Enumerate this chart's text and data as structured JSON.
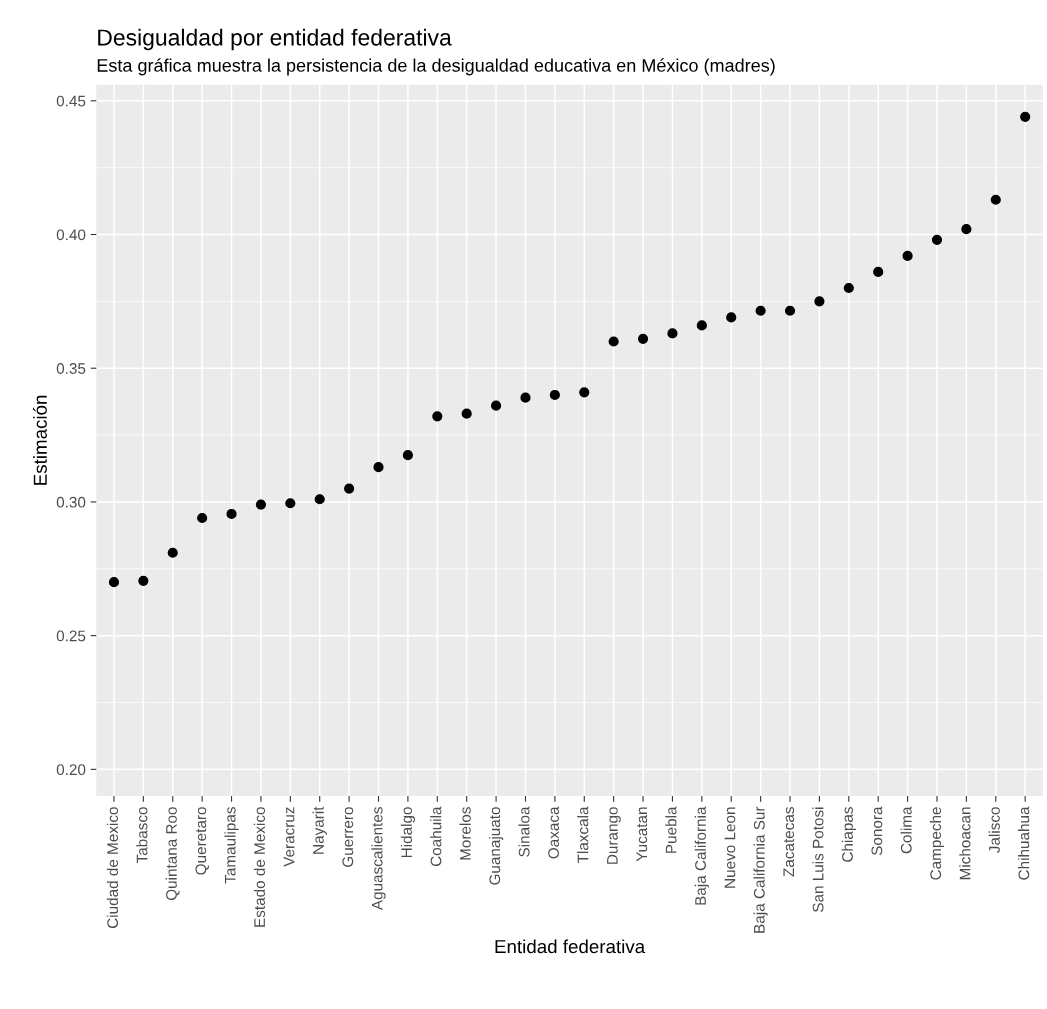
{
  "chart_data": {
    "type": "scatter",
    "title": "Desigualdad por entidad federativa",
    "subtitle": "Esta gráfica muestra la persistencia de la desigualdad educativa en México (madres)",
    "xlabel": "Entidad federativa",
    "ylabel": "Estimación",
    "categories": [
      "Ciudad de Mexico",
      "Tabasco",
      "Quintana Roo",
      "Queretaro",
      "Tamaulipas",
      "Estado de Mexico",
      "Veracruz",
      "Nayarit",
      "Guerrero",
      "Aguascalientes",
      "Hidalgo",
      "Coahuila",
      "Morelos",
      "Guanajuato",
      "Sinaloa",
      "Oaxaca",
      "Tlaxcala",
      "Durango",
      "Yucatan",
      "Puebla",
      "Baja California",
      "Nuevo Leon",
      "Baja California Sur",
      "Zacatecas",
      "San Luis Potosi",
      "Chiapas",
      "Sonora",
      "Colima",
      "Campeche",
      "Michoacan",
      "Jalisco",
      "Chihuahua"
    ],
    "series": [
      {
        "color": "#000000",
        "values": [
          0.27,
          0.2705,
          0.281,
          0.294,
          0.2955,
          0.299,
          0.2995,
          0.301,
          0.305,
          0.313,
          0.3175,
          0.332,
          0.333,
          0.336,
          0.339,
          0.34,
          0.341,
          0.36,
          0.361,
          0.363,
          0.366,
          0.369,
          0.3715,
          0.3715,
          0.375,
          0.38,
          0.386,
          0.392,
          0.398,
          0.402,
          0.413,
          0.444
        ]
      }
    ],
    "ylim": [
      0.19,
      0.456
    ],
    "yticks": [
      {
        "value": 0.2,
        "label": "0.20"
      },
      {
        "value": 0.25,
        "label": "0.25"
      },
      {
        "value": 0.3,
        "label": "0.30"
      },
      {
        "value": 0.35,
        "label": "0.35"
      },
      {
        "value": 0.4,
        "label": "0.40"
      },
      {
        "value": 0.45,
        "label": "0.45"
      }
    ],
    "grid": true,
    "marker": "circle"
  }
}
